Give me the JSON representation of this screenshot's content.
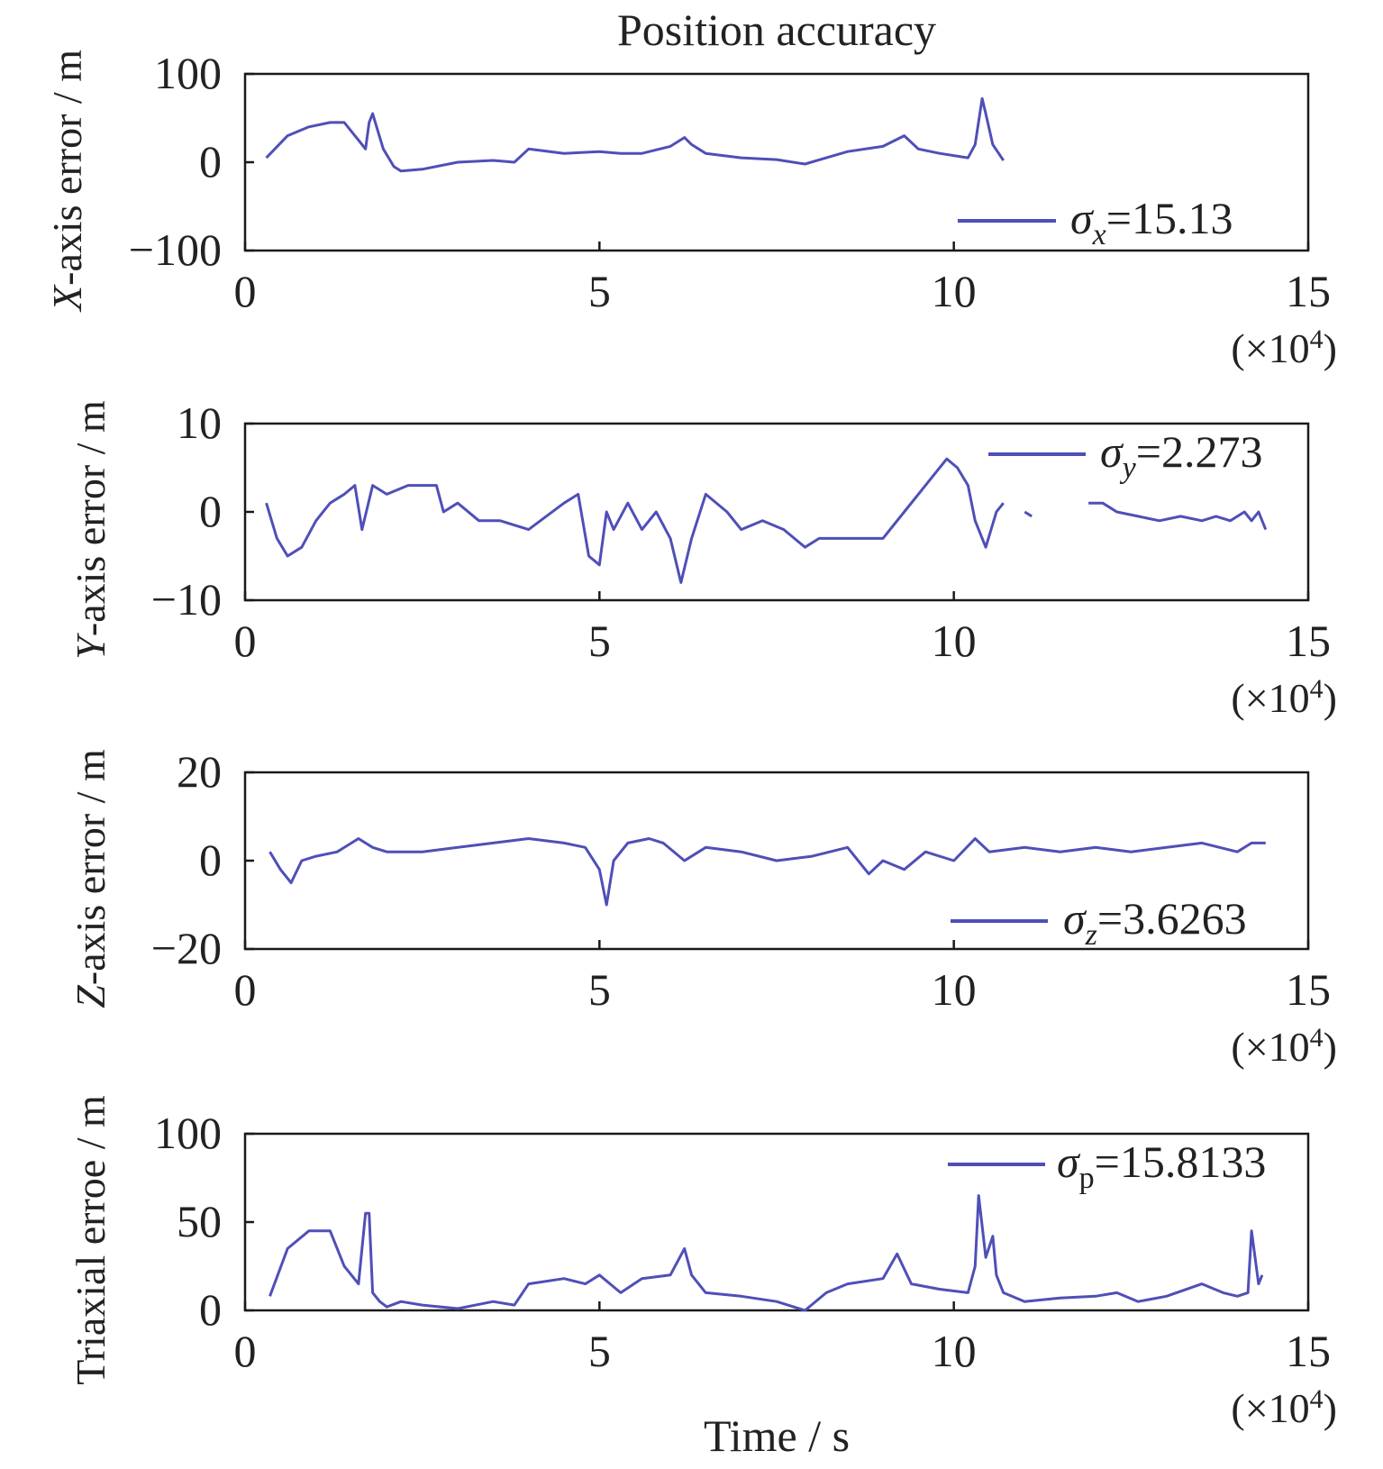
{
  "chart_data": [
    {
      "type": "line",
      "title": "Position accuracy",
      "ylabel_prefix": "X",
      "ylabel_rest": "-axis error / m",
      "xlabel": "",
      "xlim": [
        0,
        15
      ],
      "ylim": [
        -100,
        100
      ],
      "xticks": [
        "0",
        "5",
        "10",
        "15"
      ],
      "yticks": [
        "100",
        "0",
        "−100"
      ],
      "x_multiplier": "(×10",
      "x_multiplier_exp": "4",
      "x_multiplier_close": ")",
      "legend": {
        "sym": "σ",
        "sub": "x",
        "text": "=15.13",
        "position": "bottom-right"
      },
      "series": [
        {
          "color": "#4f4fb8",
          "x": [
            0.3,
            0.6,
            0.9,
            1.2,
            1.4,
            1.55,
            1.6,
            1.7,
            1.75,
            1.8,
            1.95,
            2.1,
            2.2,
            2.5,
            3.0,
            3.5,
            3.8,
            4.0,
            4.5,
            5.0,
            5.3,
            5.6,
            6.0,
            6.2,
            6.3,
            6.5,
            7.0,
            7.5,
            7.9,
            8.2,
            8.5,
            9.0,
            9.3,
            9.5,
            9.8,
            10.2,
            10.3,
            10.4,
            10.45,
            10.55,
            10.7
          ],
          "y": [
            5,
            30,
            40,
            45,
            45,
            30,
            25,
            15,
            45,
            55,
            15,
            -5,
            -10,
            -8,
            0,
            2,
            0,
            15,
            10,
            12,
            10,
            10,
            18,
            28,
            20,
            10,
            5,
            3,
            -2,
            5,
            12,
            18,
            30,
            15,
            10,
            5,
            20,
            72,
            55,
            20,
            2
          ]
        }
      ]
    },
    {
      "type": "line",
      "ylabel_prefix": "Y",
      "ylabel_rest": "-axis error / m",
      "xlabel": "",
      "xlim": [
        0,
        15
      ],
      "ylim": [
        -10,
        10
      ],
      "xticks": [
        "0",
        "5",
        "10",
        "15"
      ],
      "yticks": [
        "10",
        "0",
        "−10"
      ],
      "x_multiplier": "(×10",
      "x_multiplier_exp": "4",
      "x_multiplier_close": ")",
      "legend": {
        "sym": "σ",
        "sub": "y",
        "text": "=2.273",
        "position": "top-right"
      },
      "series": [
        {
          "color": "#4f4fb8",
          "x": [
            0.3,
            0.45,
            0.6,
            0.8,
            1.0,
            1.2,
            1.4,
            1.55,
            1.65,
            1.8,
            2.0,
            2.3,
            2.7,
            2.8,
            3.0,
            3.3,
            3.6,
            4.0,
            4.5,
            4.7,
            4.85,
            5.0,
            5.1,
            5.2,
            5.4,
            5.6,
            5.8,
            6.0,
            6.15,
            6.3,
            6.5,
            6.8,
            7.0,
            7.3,
            7.6,
            7.9,
            8.1,
            8.4,
            8.7,
            9.0,
            9.3,
            9.6,
            9.9,
            10.05,
            10.2,
            10.3,
            10.45,
            10.6,
            10.7,
            null,
            11.0,
            11.1,
            null,
            11.9,
            12.1,
            12.3,
            12.6,
            12.9,
            13.2,
            13.5,
            13.7,
            13.9,
            14.1,
            14.2,
            14.3,
            14.4
          ],
          "y": [
            1,
            -3,
            -5,
            -4,
            -1,
            1,
            2,
            3,
            -2,
            3,
            2,
            3,
            3,
            0,
            1,
            -1,
            -1,
            -2,
            1,
            2,
            -5,
            -6,
            0,
            -2,
            1,
            -2,
            0,
            -3,
            -8,
            -3,
            2,
            0,
            -2,
            -1,
            -2,
            -4,
            -3,
            -3,
            -3,
            -3,
            0,
            3,
            6,
            5,
            3,
            -1,
            -4,
            0,
            1,
            null,
            0,
            -0.5,
            null,
            1,
            1,
            0,
            -0.5,
            -1,
            -0.5,
            -1,
            -0.5,
            -1,
            0,
            -1,
            0,
            -2
          ]
        }
      ]
    },
    {
      "type": "line",
      "ylabel_prefix": "Z",
      "ylabel_rest": "-axis error / m",
      "xlabel": "",
      "xlim": [
        0,
        15
      ],
      "ylim": [
        -20,
        20
      ],
      "xticks": [
        "0",
        "5",
        "10",
        "15"
      ],
      "yticks": [
        "20",
        "0",
        "−20"
      ],
      "x_multiplier": "(×10",
      "x_multiplier_exp": "4",
      "x_multiplier_close": ")",
      "legend": {
        "sym": "σ",
        "sub": "z",
        "text": "=3.6263",
        "position": "bottom-right"
      },
      "series": [
        {
          "color": "#4f4fb8",
          "x": [
            0.35,
            0.5,
            0.65,
            0.8,
            1.0,
            1.3,
            1.6,
            1.8,
            2.0,
            2.5,
            3.0,
            3.5,
            4.0,
            4.5,
            4.8,
            5.0,
            5.1,
            5.2,
            5.4,
            5.7,
            5.9,
            6.2,
            6.5,
            7.0,
            7.5,
            8.0,
            8.5,
            8.8,
            9.0,
            9.3,
            9.6,
            10.0,
            10.3,
            10.5,
            11.0,
            11.5,
            12.0,
            12.5,
            13.0,
            13.5,
            14.0,
            14.2,
            14.4
          ],
          "y": [
            2,
            -2,
            -5,
            0,
            1,
            2,
            5,
            3,
            2,
            2,
            3,
            4,
            5,
            4,
            3,
            -2,
            -10,
            0,
            4,
            5,
            4,
            0,
            3,
            2,
            0,
            1,
            3,
            -3,
            0,
            -2,
            2,
            0,
            5,
            2,
            3,
            2,
            3,
            2,
            3,
            4,
            2,
            4,
            4
          ]
        }
      ]
    },
    {
      "type": "line",
      "ylabel_prefix": "",
      "ylabel_rest": "Triaxial erroe / m",
      "xlabel": "Time / s",
      "xlim": [
        0,
        15
      ],
      "ylim": [
        0,
        100
      ],
      "xticks": [
        "0",
        "5",
        "10",
        "15"
      ],
      "yticks": [
        "100",
        "50",
        "0"
      ],
      "x_multiplier": "(×10",
      "x_multiplier_exp": "4",
      "x_multiplier_close": ")",
      "legend": {
        "sym": "σ",
        "sub": "p",
        "text": "=15.8133",
        "position": "top-right"
      },
      "series": [
        {
          "color": "#4f4fb8",
          "x": [
            0.35,
            0.6,
            0.9,
            1.2,
            1.4,
            1.6,
            1.7,
            1.75,
            1.8,
            1.9,
            2.0,
            2.2,
            2.5,
            3.0,
            3.5,
            3.8,
            4.0,
            4.5,
            4.8,
            5.0,
            5.3,
            5.6,
            6.0,
            6.2,
            6.3,
            6.5,
            7.0,
            7.5,
            7.9,
            8.2,
            8.5,
            9.0,
            9.2,
            9.4,
            9.8,
            10.2,
            10.3,
            10.35,
            10.45,
            10.55,
            10.6,
            10.7,
            11.0,
            11.5,
            12.0,
            12.3,
            12.6,
            13.0,
            13.5,
            13.8,
            14.0,
            14.15,
            14.2,
            14.3,
            14.35
          ],
          "y": [
            8,
            35,
            45,
            45,
            25,
            15,
            55,
            55,
            10,
            5,
            2,
            5,
            3,
            1,
            5,
            3,
            15,
            18,
            15,
            20,
            10,
            18,
            20,
            35,
            20,
            10,
            8,
            5,
            0,
            10,
            15,
            18,
            32,
            15,
            12,
            10,
            25,
            65,
            30,
            42,
            20,
            10,
            5,
            7,
            8,
            10,
            5,
            8,
            15,
            10,
            8,
            10,
            45,
            15,
            20
          ]
        }
      ]
    }
  ]
}
